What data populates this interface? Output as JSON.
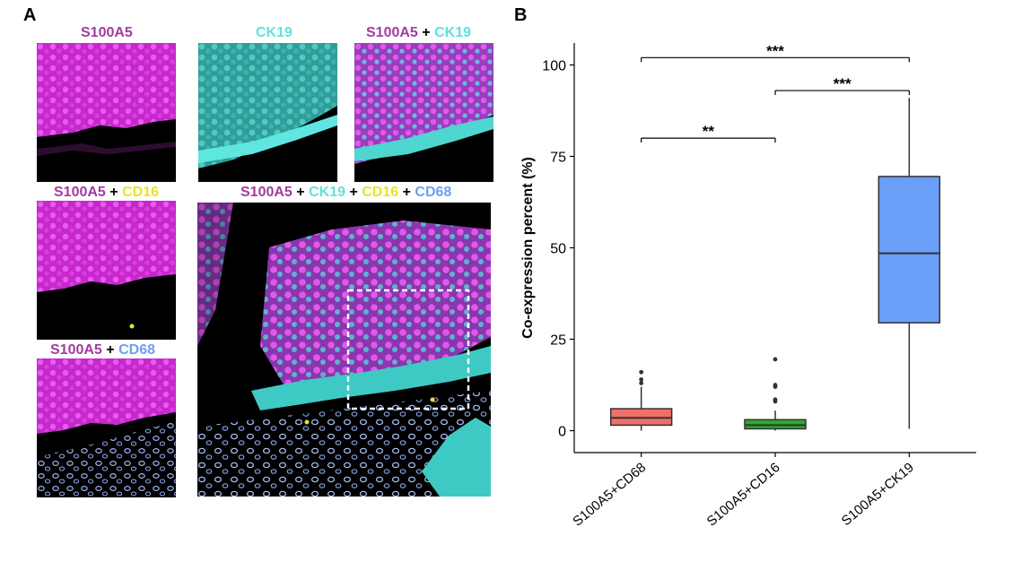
{
  "panels": {
    "a": "A",
    "b": "B"
  },
  "images": {
    "s100a5": {
      "m1": "S100A5"
    },
    "ck19": {
      "m1": "CK19"
    },
    "s100a5_ck19": {
      "m1": "S100A5",
      "p1": "+",
      "m2": "CK19"
    },
    "s100a5_cd16": {
      "m1": "S100A5",
      "p1": "+",
      "m2": "CD16"
    },
    "merge": {
      "m1": "S100A5",
      "p1": "+",
      "m2": "CK19",
      "p2": "+",
      "m3": "CD16",
      "p3": "+",
      "m4": "CD68"
    },
    "s100a5_cd68": {
      "m1": "S100A5",
      "p1": "+",
      "m2": "CD68"
    }
  },
  "colors": {
    "s100a5": "#a23ba0",
    "ck19": "#5fe0df",
    "cd16": "#e8e22a",
    "cd68": "#6f9ff2",
    "magenta_signal": "#e23ae6",
    "cyan_signal": "#3fc9c4"
  },
  "chart_data": {
    "type": "box",
    "ylabel": "Co-expression percent (%)",
    "ylim": [
      -6,
      106
    ],
    "yticks": [
      0,
      25,
      50,
      75,
      100
    ],
    "grid": false,
    "categories": [
      "S100A5+CD68",
      "S100A5+CD16",
      "S100A5+CK19"
    ],
    "boxes": [
      {
        "name": "S100A5+CD68",
        "color": "#f07068",
        "min": 0,
        "q1": 1.5,
        "median": 3.5,
        "q3": 6,
        "max": 12,
        "outliers": [
          13,
          14,
          16
        ]
      },
      {
        "name": "S100A5+CD16",
        "color": "#2fa82f",
        "min": 0,
        "q1": 0.5,
        "median": 1.5,
        "q3": 3,
        "max": 5.5,
        "outliers": [
          8,
          8.5,
          12,
          12.5,
          19.5
        ]
      },
      {
        "name": "S100A5+CK19",
        "color": "#6a9ef8",
        "min": 0.5,
        "q1": 29.5,
        "median": 48.5,
        "q3": 69.5,
        "max": 91,
        "outliers": []
      }
    ],
    "significance": [
      {
        "from": 0,
        "to": 1,
        "y": 80,
        "label": "**"
      },
      {
        "from": 1,
        "to": 2,
        "y": 93,
        "label": "***"
      },
      {
        "from": 0,
        "to": 2,
        "y": 102,
        "label": "***"
      }
    ]
  }
}
